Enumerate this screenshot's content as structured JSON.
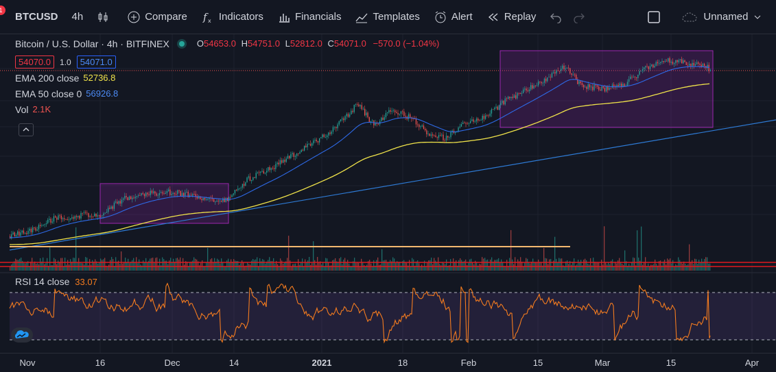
{
  "toolbar": {
    "notification_count": "1",
    "symbol": "BTCUSD",
    "interval": "4h",
    "compare": "Compare",
    "indicators": "Indicators",
    "financials": "Financials",
    "templates": "Templates",
    "alert": "Alert",
    "replay": "Replay",
    "layout_name": "Unnamed"
  },
  "legend": {
    "title": "Bitcoin / U.S. Dollar · 4h · BITFINEX",
    "open_label": "O",
    "open": "54653.0",
    "high_label": "H",
    "high": "54751.0",
    "low_label": "L",
    "low": "52812.0",
    "close_label": "C",
    "close": "54071.0",
    "change": "−570.0 (−1.04%)",
    "bid": "54070.0",
    "spread": "1.0",
    "ask": "54071.0",
    "ema200_label": "EMA 200 close",
    "ema200_value": "52736.8",
    "ema50_label": "EMA 50 close 0",
    "ema50_value": "56926.8",
    "vol_label": "Vol",
    "vol_value": "2.1K"
  },
  "rsi": {
    "label": "RSI 14 close",
    "value": "33.07",
    "upper": 70,
    "lower": 30
  },
  "time_axis": [
    {
      "label": "Nov"
    },
    {
      "label": "16"
    },
    {
      "label": "Dec"
    },
    {
      "label": "14"
    },
    {
      "label": "2021",
      "bold": true
    },
    {
      "label": "18"
    },
    {
      "label": "Feb"
    },
    {
      "label": "15"
    },
    {
      "label": "Mar"
    },
    {
      "label": "15"
    },
    {
      "label": "Apr"
    }
  ],
  "colors": {
    "bg": "#131722",
    "up": "#26a69a",
    "down": "#ef5350",
    "ema200": "#f0e34a",
    "ema50": "#2e6ae8",
    "rsi": "#f57c1f",
    "box": "#9c27b0",
    "trend": "#2e7bd6",
    "hline": "#f4b970",
    "red_line": "#e0181e"
  }
}
